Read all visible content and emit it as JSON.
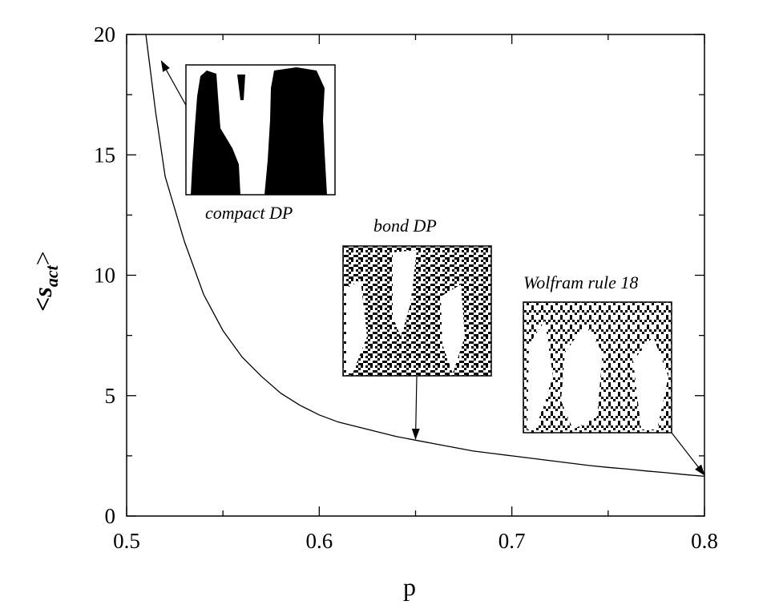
{
  "chart_data": {
    "type": "line",
    "xlabel": "p",
    "ylabel": {
      "base": "<s",
      "subscript": "act",
      "close": ">"
    },
    "xlim": [
      0.5,
      0.8
    ],
    "ylim": [
      0,
      20
    ],
    "x_ticks": [
      "0.5",
      "0.6",
      "0.7",
      "0.8"
    ],
    "y_ticks": [
      "0",
      "5",
      "10",
      "15",
      "20"
    ],
    "grid": false,
    "series": [
      {
        "x": [
          0.51,
          0.515,
          0.52,
          0.53,
          0.54,
          0.55,
          0.56,
          0.57,
          0.58,
          0.59,
          0.6,
          0.61,
          0.62,
          0.63,
          0.64,
          0.65,
          0.66,
          0.67,
          0.68,
          0.69,
          0.7,
          0.71,
          0.72,
          0.73,
          0.74,
          0.75,
          0.76,
          0.77,
          0.78,
          0.79,
          0.8
        ],
        "y": [
          20.0,
          16.8,
          14.1,
          11.4,
          9.2,
          7.7,
          6.6,
          5.8,
          5.1,
          4.6,
          4.2,
          3.9,
          3.7,
          3.5,
          3.3,
          3.15,
          3.0,
          2.85,
          2.7,
          2.6,
          2.5,
          2.4,
          2.3,
          2.2,
          2.1,
          2.02,
          1.95,
          1.87,
          1.8,
          1.72,
          1.65
        ]
      }
    ],
    "annotations": [
      {
        "text": "compact DP",
        "target": [
          0.518,
          18.9
        ]
      },
      {
        "text": "bond DP",
        "target": [
          0.65,
          3.2
        ]
      },
      {
        "text": "Wolfram rule 18",
        "target": [
          0.8,
          1.7
        ]
      }
    ]
  }
}
